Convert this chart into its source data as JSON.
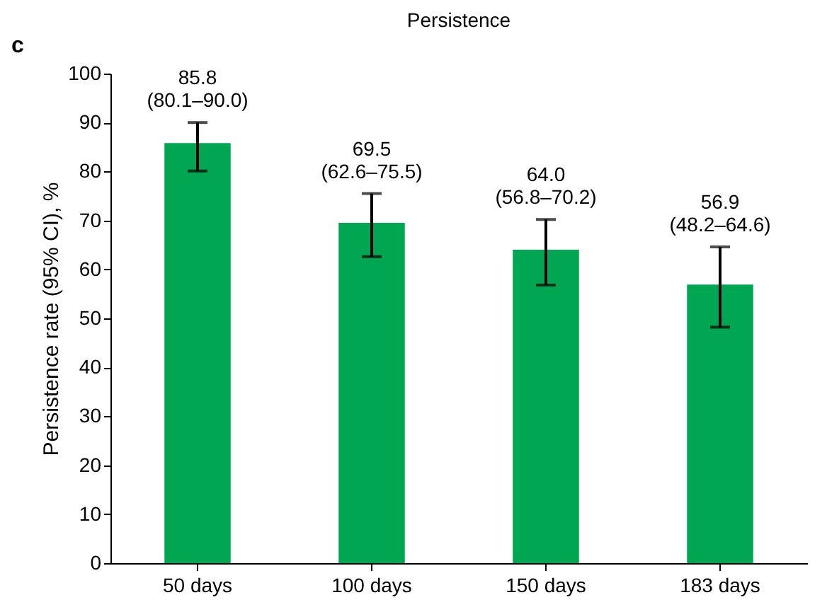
{
  "chart_data": {
    "type": "bar",
    "title": "Persistence",
    "ylabel": "Persistence rate (95% CI), %",
    "annotations": [
      "c"
    ],
    "categories": [
      "50 days",
      "100 days",
      "150 days",
      "183 days"
    ],
    "values": [
      85.8,
      69.5,
      64.0,
      56.9
    ],
    "errors": [
      [
        80.1,
        90.0
      ],
      [
        62.6,
        75.5
      ],
      [
        56.8,
        70.2
      ],
      [
        48.2,
        64.6
      ]
    ],
    "value_labels": [
      "85.8\n(80.1–90.0)",
      "69.5\n(62.6–75.5)",
      "64.0\n(56.8–70.2)",
      "56.9\n(48.2–64.6)"
    ],
    "color": "#00a651",
    "ylim": [
      0,
      100
    ],
    "yticks": [
      0,
      10,
      20,
      30,
      40,
      50,
      60,
      70,
      80,
      90,
      100
    ],
    "grid": false
  }
}
